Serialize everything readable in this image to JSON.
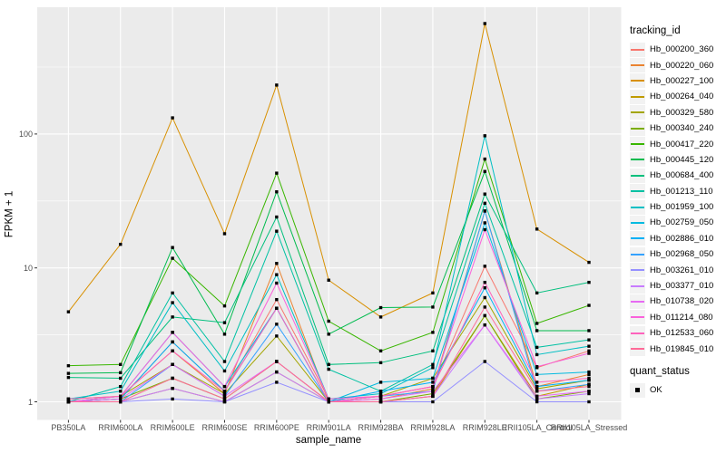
{
  "legend": {
    "color_title": "tracking_id",
    "shape_title": "quant_status",
    "shape_items": [
      {
        "label": "OK",
        "marker": "black-square"
      }
    ]
  },
  "chart_data": {
    "type": "line",
    "title": "",
    "xlabel": "sample_name",
    "ylabel": "FPKM + 1",
    "y_scale": "log10",
    "ylim": [
      0.72,
      740
    ],
    "y_ticks": [
      1,
      10,
      100
    ],
    "y_tick_labels": [
      "1",
      "10",
      "100"
    ],
    "y_minor_gridlines": [
      3.162,
      31.62,
      316.2
    ],
    "grid": true,
    "legend_position": "right",
    "panel_background": "#EBEBEB",
    "gridline_color": "#FFFFFF",
    "tick_color": "#333333",
    "point_color": "#000000",
    "point_shape": "filled-square",
    "categories": [
      "PB350LA",
      "RRIM600LA",
      "RRIM600LE",
      "RRIM600SE",
      "RRIM600PE",
      "RRIM901LA",
      "RRIM928BA",
      "RRIM928LA",
      "RRIM928LE",
      "RRII105LA_Control",
      "RRII105LA_Stressed"
    ],
    "series": [
      {
        "name": "Hb_000200_360",
        "color": "#F8766D",
        "values": [
          1.0,
          1.05,
          2.8,
          1.2,
          5.8,
          1.05,
          1.1,
          1.3,
          10.3,
          1.8,
          2.4
        ]
      },
      {
        "name": "Hb_000220_060",
        "color": "#EA8331",
        "values": [
          1.0,
          1.1,
          2.4,
          1.15,
          10.8,
          1.0,
          1.05,
          1.25,
          26.6,
          1.3,
          1.6
        ]
      },
      {
        "name": "Hb_000227_100",
        "color": "#D89000",
        "values": [
          4.7,
          15,
          132,
          18,
          232,
          8.1,
          4.3,
          6.5,
          668,
          19.5,
          11
        ]
      },
      {
        "name": "Hb_000264_040",
        "color": "#C09B00",
        "values": [
          1.0,
          1.0,
          1.26,
          1.0,
          1.67,
          1.0,
          1.0,
          1.1,
          4.4,
          1.1,
          1.35
        ]
      },
      {
        "name": "Hb_000329_580",
        "color": "#A3A500",
        "values": [
          1.05,
          1.1,
          1.9,
          1.15,
          3.1,
          1.0,
          1.1,
          1.5,
          6.0,
          1.25,
          1.45
        ]
      },
      {
        "name": "Hb_000340_240",
        "color": "#7CAE00",
        "values": [
          1.0,
          1.05,
          1.5,
          1.05,
          2.0,
          1.0,
          1.0,
          1.15,
          4.4,
          1.05,
          1.2
        ]
      },
      {
        "name": "Hb_000417_220",
        "color": "#39B600",
        "values": [
          1.86,
          1.9,
          11.8,
          5.2,
          51,
          4.0,
          2.4,
          3.3,
          65,
          3.85,
          5.25
        ]
      },
      {
        "name": "Hb_000445_120",
        "color": "#00BB4E",
        "values": [
          1.63,
          1.65,
          14.2,
          3.2,
          37,
          3.2,
          5.05,
          5.1,
          52.5,
          3.4,
          3.4
        ]
      },
      {
        "name": "Hb_000684_400",
        "color": "#00BF7D",
        "values": [
          1.52,
          1.5,
          4.3,
          3.9,
          24,
          1.9,
          1.96,
          2.4,
          35.6,
          6.5,
          7.8
        ]
      },
      {
        "name": "Hb_001213_110",
        "color": "#00C1A3",
        "values": [
          1.0,
          1.3,
          6.5,
          2.0,
          18.8,
          1.75,
          1.2,
          1.9,
          30.4,
          2.55,
          2.9
        ]
      },
      {
        "name": "Hb_001959_100",
        "color": "#00BFC4",
        "values": [
          1.05,
          1.2,
          5.5,
          1.7,
          8.9,
          1.05,
          1.15,
          1.8,
          97,
          2.25,
          2.6
        ]
      },
      {
        "name": "Hb_002759_050",
        "color": "#00BAE0",
        "values": [
          1.0,
          1.1,
          3.3,
          1.3,
          5.0,
          1.0,
          1.4,
          1.5,
          21.7,
          1.6,
          1.67
        ]
      },
      {
        "name": "Hb_002886_010",
        "color": "#00B0F6",
        "values": [
          1.0,
          1.05,
          2.8,
          1.2,
          5.0,
          1.0,
          1.2,
          1.4,
          7.1,
          1.3,
          1.45
        ]
      },
      {
        "name": "Hb_002968_050",
        "color": "#35A2FF",
        "values": [
          1.0,
          1.0,
          1.9,
          1.1,
          3.8,
          1.0,
          1.1,
          1.2,
          26.6,
          1.2,
          1.35
        ]
      },
      {
        "name": "Hb_003261_010",
        "color": "#9590FF",
        "values": [
          1.0,
          1.0,
          1.05,
          1.0,
          1.4,
          1.0,
          1.0,
          1.0,
          2.0,
          1.0,
          1.0
        ]
      },
      {
        "name": "Hb_003377_010",
        "color": "#C77CFF",
        "values": [
          1.0,
          1.0,
          1.26,
          1.0,
          1.67,
          1.0,
          1.0,
          1.1,
          3.75,
          1.05,
          1.15
        ]
      },
      {
        "name": "Hb_010738_020",
        "color": "#E76BF3",
        "values": [
          1.0,
          1.05,
          1.9,
          1.1,
          2.0,
          1.0,
          1.05,
          1.2,
          3.75,
          1.1,
          1.2
        ]
      },
      {
        "name": "Hb_011214_080",
        "color": "#FA62DB",
        "values": [
          1.0,
          1.1,
          3.3,
          1.3,
          7.7,
          1.05,
          1.1,
          1.3,
          19.3,
          1.83,
          2.3
        ]
      },
      {
        "name": "Hb_012533_060",
        "color": "#FF62BC",
        "values": [
          1.05,
          1.1,
          2.4,
          1.2,
          5.0,
          1.0,
          1.1,
          1.3,
          7.8,
          1.4,
          1.5
        ]
      },
      {
        "name": "Hb_019845_010",
        "color": "#FF6A98",
        "values": [
          1.0,
          1.0,
          1.5,
          1.05,
          2.0,
          1.0,
          1.0,
          1.1,
          5.1,
          1.2,
          1.3
        ]
      }
    ]
  }
}
